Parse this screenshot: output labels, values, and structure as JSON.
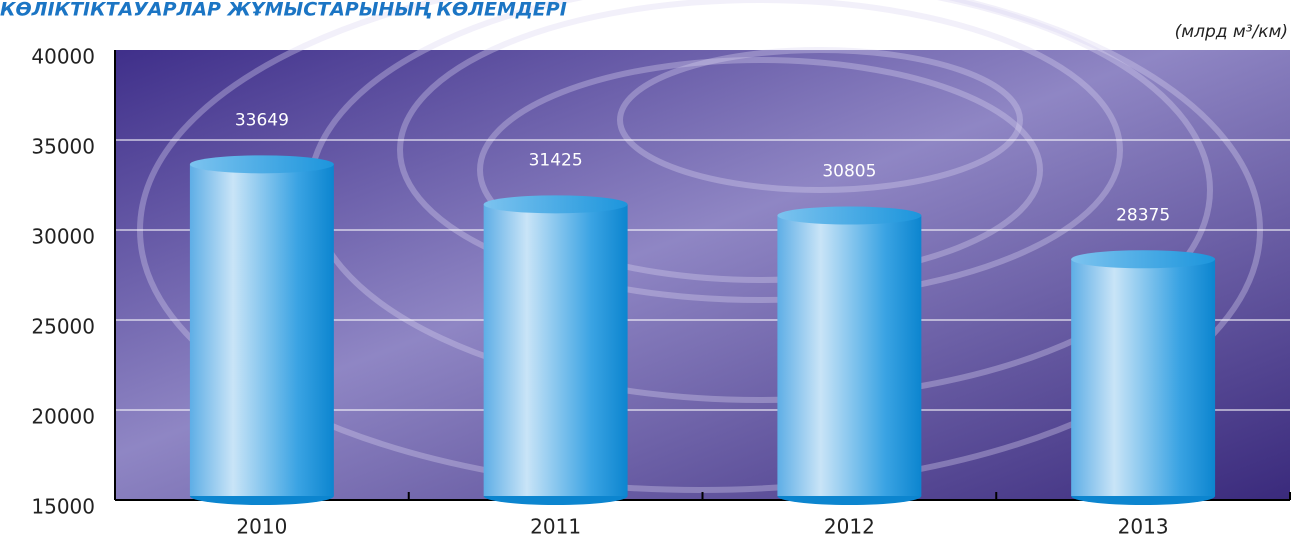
{
  "chart_data": {
    "type": "bar",
    "title": "КӨЛІКТІКТАУАРЛАР ЖҰМЫСТАРЫНЫҢ КӨЛЕМДЕРІ",
    "unit_label": "(млрд м³/км)",
    "categories": [
      "2010",
      "2011",
      "2012",
      "2013"
    ],
    "values": [
      33649,
      31425,
      30805,
      28375
    ],
    "color": "#1f9ee0",
    "ylim": [
      15000,
      40000
    ],
    "yticks": [
      15000,
      20000,
      25000,
      30000,
      35000,
      40000
    ],
    "grid": true
  }
}
